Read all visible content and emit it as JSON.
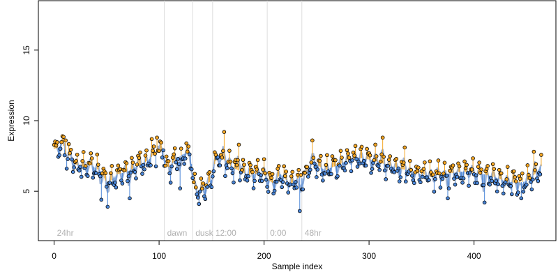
{
  "chart_data": {
    "type": "scatter",
    "title": "",
    "xlabel": "Sample index",
    "ylabel": "Expression",
    "xlim": [
      -15,
      478
    ],
    "ylim": [
      1.5,
      18.5
    ],
    "xticks": [
      0,
      100,
      200,
      300,
      400
    ],
    "yticks": [
      5,
      10,
      15
    ],
    "baseline": 7.0,
    "colors": {
      "above": "#f5a623",
      "below": "#4a86d8",
      "smooth": "#9fb4d6",
      "point_edge": "#000000",
      "divider": "#dddddd",
      "region_label": "#b0b0b0"
    },
    "regions": [
      {
        "label": "24hr",
        "start": 0
      },
      {
        "label": "dawn",
        "start": 105
      },
      {
        "label": "dusk",
        "start": 132
      },
      {
        "label": "12:00",
        "start": 151
      },
      {
        "label": "0:00",
        "start": 203
      },
      {
        "label": "48hr",
        "start": 236
      }
    ],
    "anchors": [
      [
        0,
        8.0
      ],
      [
        4,
        8.1
      ],
      [
        8,
        8.5
      ],
      [
        12,
        7.4
      ],
      [
        16,
        7.6
      ],
      [
        20,
        6.9
      ],
      [
        25,
        6.8
      ],
      [
        30,
        6.7
      ],
      [
        35,
        6.9
      ],
      [
        40,
        6.6
      ],
      [
        45,
        6.4
      ],
      [
        50,
        5.6
      ],
      [
        55,
        5.8
      ],
      [
        60,
        6.2
      ],
      [
        65,
        6.3
      ],
      [
        70,
        6.4
      ],
      [
        75,
        6.6
      ],
      [
        80,
        6.8
      ],
      [
        85,
        7.0
      ],
      [
        90,
        7.2
      ],
      [
        95,
        7.6
      ],
      [
        100,
        7.8
      ],
      [
        104,
        8.0
      ],
      [
        106,
        6.8
      ],
      [
        110,
        6.7
      ],
      [
        115,
        7.2
      ],
      [
        120,
        7.5
      ],
      [
        125,
        7.7
      ],
      [
        130,
        7.6
      ],
      [
        133,
        5.6
      ],
      [
        136,
        5.0
      ],
      [
        140,
        5.1
      ],
      [
        145,
        5.4
      ],
      [
        150,
        5.8
      ],
      [
        152,
        6.7
      ],
      [
        156,
        7.6
      ],
      [
        160,
        7.3
      ],
      [
        165,
        7.0
      ],
      [
        170,
        6.7
      ],
      [
        175,
        6.5
      ],
      [
        180,
        6.3
      ],
      [
        185,
        6.2
      ],
      [
        190,
        6.2
      ],
      [
        195,
        6.3
      ],
      [
        200,
        6.2
      ],
      [
        204,
        5.8
      ],
      [
        208,
        5.6
      ],
      [
        212,
        5.9
      ],
      [
        216,
        6.2
      ],
      [
        220,
        5.9
      ],
      [
        225,
        5.5
      ],
      [
        230,
        5.8
      ],
      [
        234,
        6.0
      ],
      [
        237,
        5.9
      ],
      [
        242,
        6.6
      ],
      [
        247,
        7.2
      ],
      [
        252,
        6.8
      ],
      [
        258,
        6.5
      ],
      [
        265,
        6.7
      ],
      [
        272,
        6.9
      ],
      [
        280,
        7.2
      ],
      [
        288,
        7.4
      ],
      [
        296,
        7.3
      ],
      [
        304,
        7.2
      ],
      [
        312,
        7.0
      ],
      [
        320,
        6.8
      ],
      [
        330,
        6.6
      ],
      [
        340,
        6.4
      ],
      [
        350,
        6.2
      ],
      [
        360,
        6.1
      ],
      [
        370,
        6.2
      ],
      [
        380,
        6.3
      ],
      [
        390,
        6.4
      ],
      [
        400,
        6.3
      ],
      [
        410,
        6.2
      ],
      [
        420,
        6.0
      ],
      [
        430,
        5.7
      ],
      [
        440,
        5.6
      ],
      [
        450,
        5.7
      ],
      [
        458,
        6.2
      ],
      [
        464,
        6.8
      ]
    ],
    "fluct_amplitude": 1.15,
    "outliers": [
      [
        8,
        8.9
      ],
      [
        11,
        8.6
      ],
      [
        45,
        4.4
      ],
      [
        51,
        3.9
      ],
      [
        72,
        4.5
      ],
      [
        93,
        8.7
      ],
      [
        98,
        8.8
      ],
      [
        120,
        5.2
      ],
      [
        162,
        9.2
      ],
      [
        176,
        8.3
      ],
      [
        234,
        3.6
      ],
      [
        246,
        8.6
      ],
      [
        298,
        8.0
      ],
      [
        313,
        8.8
      ],
      [
        334,
        8.1
      ],
      [
        375,
        4.5
      ],
      [
        410,
        4.2
      ],
      [
        445,
        4.5
      ],
      [
        457,
        7.8
      ],
      [
        465,
        7.0
      ]
    ],
    "n_samples": 465
  }
}
